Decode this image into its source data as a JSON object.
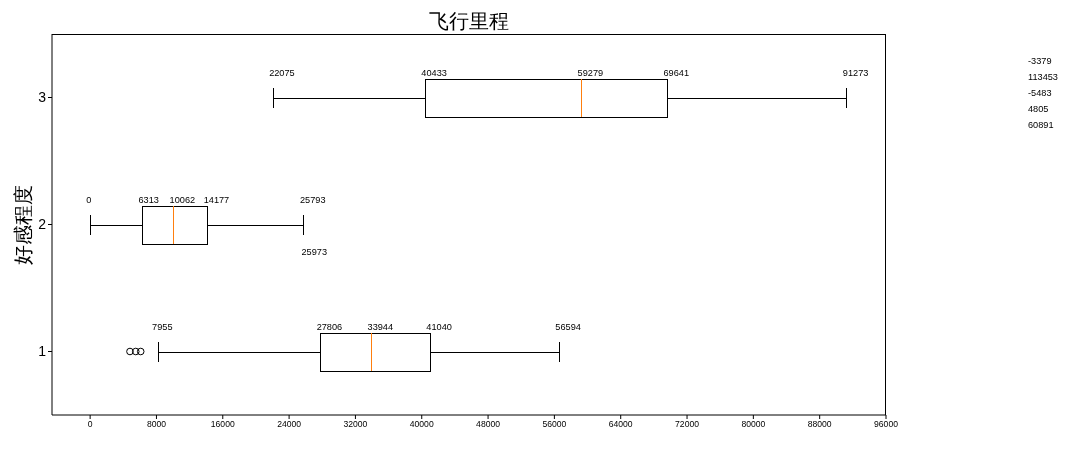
{
  "chart_data": {
    "type": "box",
    "orientation": "horizontal",
    "title": "飞行里程",
    "ylabel": "好感程度",
    "color": "#000000",
    "categories": [
      "3",
      "2",
      "1"
    ],
    "boxes": [
      {
        "low": 22075,
        "q1": 40433,
        "median": 59279,
        "q3": 69641,
        "high": 91273
      },
      {
        "low": 0,
        "q1": 6313,
        "median": 10062,
        "q3": 14177,
        "high": 25793
      },
      {
        "low": 8200,
        "q1": 27806,
        "median": 33944,
        "q3": 41040,
        "high": 56594,
        "outliers": [
          4805,
          5500,
          6100
        ]
      }
    ],
    "xlim": [
      -4600,
      96000
    ],
    "xticks": [
      0,
      8000,
      16000,
      24000,
      32000,
      40000,
      48000,
      56000,
      64000,
      72000,
      80000,
      88000,
      96000
    ],
    "annotations": [
      "-3379",
      "113453",
      "-5483",
      "4805",
      "60891",
      {
        "text": "22075",
        "x": 22075,
        "y": "3"
      },
      {
        "text": "40433",
        "x": 40433,
        "y": "3"
      },
      {
        "text": "59279",
        "x": 59279,
        "y": "3"
      },
      {
        "text": "69641",
        "x": 69641,
        "y": "3"
      },
      {
        "text": "91273",
        "x": 91273,
        "y": "3"
      },
      {
        "text": "0",
        "x": 0,
        "y": "2"
      },
      {
        "text": "6313",
        "x": 6313,
        "y": "2"
      },
      {
        "text": "10062",
        "x": 10062,
        "y": "2"
      },
      {
        "text": "14177",
        "x": 14177,
        "y": "2"
      },
      {
        "text": "25793",
        "x": 25793,
        "y": "2"
      },
      {
        "text": "25973",
        "x": 25973,
        "y": "2"
      },
      {
        "text": "7955",
        "x": 7955,
        "y": "1"
      },
      {
        "text": "27806",
        "x": 27806,
        "y": "1"
      },
      {
        "text": "33944",
        "x": 33944,
        "y": "1"
      },
      {
        "text": "41040",
        "x": 41040,
        "y": "1"
      },
      {
        "text": "56594",
        "x": 56594,
        "y": "1"
      }
    ]
  }
}
